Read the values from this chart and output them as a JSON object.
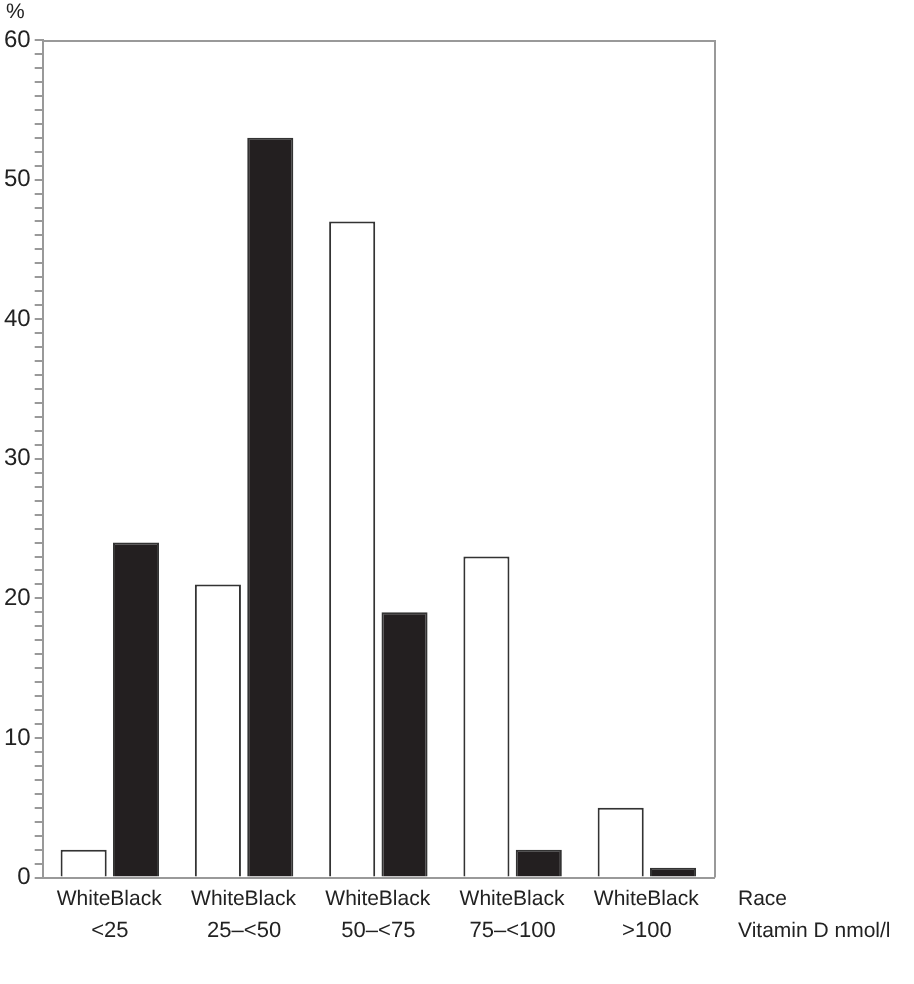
{
  "chart_data": {
    "type": "bar",
    "ylabel": "%",
    "xlabel": "Vitamin D nmol/l",
    "legend_title": "Race",
    "legend": false,
    "grid": false,
    "categories": [
      "<25",
      "25–<50",
      "50–<75",
      "75–<100",
      ">100"
    ],
    "series": [
      {
        "name": "White",
        "color": "#ffffff",
        "values": [
          2,
          21,
          47,
          23,
          5
        ]
      },
      {
        "name": "Black",
        "color": "#231f20",
        "values": [
          24,
          53,
          19,
          2,
          0.7
        ]
      }
    ],
    "ylim": [
      0,
      60
    ],
    "yticks": [
      0,
      {
        "value": 1,
        "label": null
      },
      {
        "value": 2,
        "label": null
      },
      {
        "value": 3,
        "label": null
      },
      {
        "value": 4,
        "label": null
      },
      {
        "value": 5,
        "label": null
      },
      {
        "value": 6,
        "label": null
      },
      {
        "value": 7,
        "label": null
      },
      {
        "value": 8,
        "label": null
      },
      {
        "value": 9,
        "label": null
      },
      10,
      {
        "value": 11,
        "label": null
      },
      {
        "value": 12,
        "label": null
      },
      {
        "value": 13,
        "label": null
      },
      {
        "value": 14,
        "label": null
      },
      {
        "value": 15,
        "label": null
      },
      {
        "value": 16,
        "label": null
      },
      {
        "value": 17,
        "label": null
      },
      {
        "value": 18,
        "label": null
      },
      {
        "value": 19,
        "label": null
      },
      20,
      {
        "value": 21,
        "label": null
      },
      {
        "value": 22,
        "label": null
      },
      {
        "value": 23,
        "label": null
      },
      {
        "value": 24,
        "label": null
      },
      {
        "value": 25,
        "label": null
      },
      {
        "value": 26,
        "label": null
      },
      {
        "value": 27,
        "label": null
      },
      {
        "value": 28,
        "label": null
      },
      {
        "value": 29,
        "label": null
      },
      30,
      {
        "value": 31,
        "label": null
      },
      {
        "value": 32,
        "label": null
      },
      {
        "value": 33,
        "label": null
      },
      {
        "value": 34,
        "label": null
      },
      {
        "value": 35,
        "label": null
      },
      {
        "value": 36,
        "label": null
      },
      {
        "value": 37,
        "label": null
      },
      {
        "value": 38,
        "label": null
      },
      {
        "value": 39,
        "label": null
      },
      40,
      {
        "value": 41,
        "label": null
      },
      {
        "value": 42,
        "label": null
      },
      {
        "value": 43,
        "label": null
      },
      {
        "value": 44,
        "label": null
      },
      {
        "value": 45,
        "label": null
      },
      {
        "value": 46,
        "label": null
      },
      {
        "value": 47,
        "label": null
      },
      {
        "value": 48,
        "label": null
      },
      {
        "value": 49,
        "label": null
      },
      50,
      {
        "value": 51,
        "label": null
      },
      {
        "value": 52,
        "label": null
      },
      {
        "value": 53,
        "label": null
      },
      {
        "value": 54,
        "label": null
      },
      {
        "value": 55,
        "label": null
      },
      {
        "value": 56,
        "label": null
      },
      {
        "value": 57,
        "label": null
      },
      {
        "value": 58,
        "label": null
      },
      {
        "value": 59,
        "label": null
      },
      60
    ]
  }
}
